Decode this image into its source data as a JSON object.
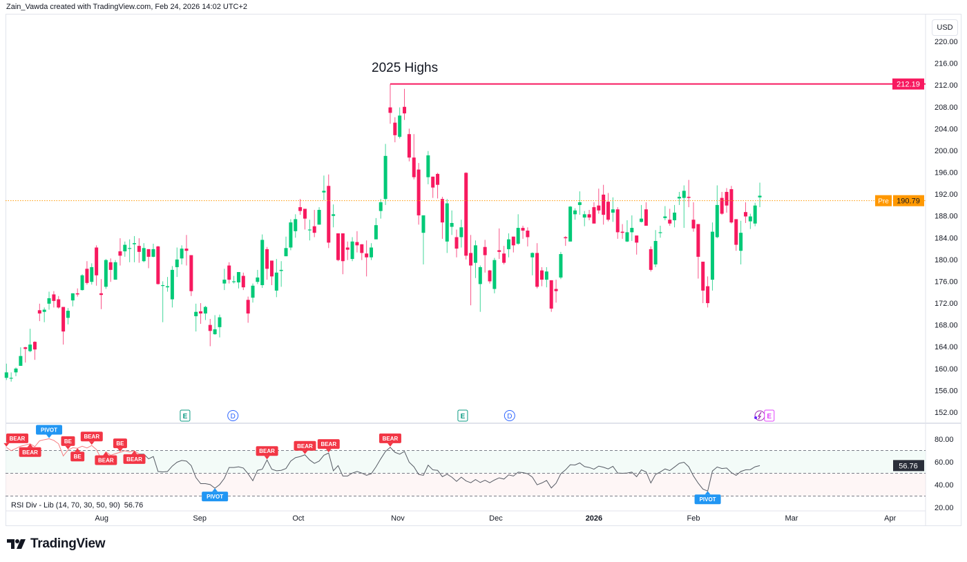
{
  "header": {
    "text": "Zain_Vawda created with TradingView.com, Feb 24, 2026 14:02 UTC+2"
  },
  "currency_button": "USD",
  "footer": {
    "logo_text": "TradingView"
  },
  "colors": {
    "up": "#089981",
    "up_bright": "#00c977",
    "down": "#f7195f",
    "highs_line": "#f7195f",
    "pre_line": "#ff9800",
    "rsi_line": "#555a63",
    "label_bear": "#f23645",
    "label_pivot": "#2196f3"
  },
  "chart_data": {
    "type": "candlestick",
    "annotation": "2025 Highs",
    "highs_level": {
      "value": 212.19,
      "label": "212.19",
      "from_index": 81
    },
    "pre_market": {
      "tag": "Pre",
      "value": 190.79,
      "label": "190.79"
    },
    "price_axis": {
      "ticks": [
        "220.00",
        "216.00",
        "212.00",
        "208.00",
        "204.00",
        "200.00",
        "196.00",
        "192.00",
        "188.00",
        "184.00",
        "180.00",
        "176.00",
        "172.00",
        "168.00",
        "164.00",
        "160.00",
        "156.00",
        "152.00"
      ],
      "min": 152,
      "max": 220
    },
    "time_axis": [
      {
        "label": "Aug",
        "index": 20.1
      },
      {
        "label": "Sep",
        "index": 40.8
      },
      {
        "label": "Oct",
        "index": 61.6
      },
      {
        "label": "Nov",
        "index": 82.6
      },
      {
        "label": "Dec",
        "index": 103.3
      },
      {
        "label": "2026",
        "index": 124,
        "bold": true
      },
      {
        "label": "Feb",
        "index": 145
      },
      {
        "label": "Mar",
        "index": 165.7
      },
      {
        "label": "Apr",
        "index": 186.5
      }
    ],
    "events": [
      {
        "type": "E",
        "index": 37.7
      },
      {
        "type": "D",
        "index": 47.8
      },
      {
        "type": "E",
        "index": 96.3
      },
      {
        "type": "D",
        "index": 106.2
      },
      {
        "type": "split",
        "index": 159
      },
      {
        "type": "E",
        "index": 161
      }
    ],
    "ohlc": [
      [
        158.3,
        160.9,
        157.9,
        159.3
      ],
      [
        158.2,
        159.3,
        157.6,
        158.3
      ],
      [
        159.3,
        160.2,
        158.6,
        160.0
      ],
      [
        160.5,
        163.9,
        160.5,
        162.3
      ],
      [
        163.9,
        164.0,
        161.1,
        163.6
      ],
      [
        163.2,
        167.3,
        163.0,
        164.4
      ],
      [
        164.9,
        165.0,
        161.6,
        163.5
      ],
      [
        170.7,
        171.9,
        168.7,
        170.1
      ],
      [
        170.4,
        171.2,
        168.5,
        170.8
      ],
      [
        171.9,
        174.1,
        170.8,
        172.9
      ],
      [
        173.6,
        174.2,
        171.2,
        172.4
      ],
      [
        172.7,
        173.3,
        171.0,
        171.2
      ],
      [
        171.3,
        171.3,
        164.4,
        166.8
      ],
      [
        169.3,
        171.1,
        168.1,
        170.6
      ],
      [
        172.5,
        173.8,
        171.4,
        173.8
      ],
      [
        173.8,
        174.7,
        173.2,
        173.6
      ],
      [
        174.4,
        177.3,
        174.3,
        177.1
      ],
      [
        178.3,
        179.7,
        175.4,
        175.7
      ],
      [
        175.9,
        179.3,
        175.4,
        178.6
      ],
      [
        182.2,
        182.6,
        175.2,
        177.1
      ],
      [
        173.8,
        176.4,
        170.9,
        173.5
      ],
      [
        175.0,
        180.1,
        174.6,
        179.9
      ],
      [
        179.5,
        180.2,
        175.9,
        178.1
      ],
      [
        176.3,
        179.9,
        176.3,
        179.5
      ],
      [
        181.5,
        183.9,
        178.9,
        180.7
      ],
      [
        181.5,
        183.3,
        180.5,
        182.7
      ],
      [
        182.0,
        183.7,
        179.5,
        182.1
      ],
      [
        182.8,
        184.3,
        179.5,
        183.0
      ],
      [
        182.5,
        183.9,
        179.4,
        181.4
      ],
      [
        179.7,
        183.0,
        179.5,
        182.1
      ],
      [
        181.9,
        181.9,
        178.4,
        180.5
      ],
      [
        180.5,
        182.9,
        180.4,
        181.9
      ],
      [
        182.4,
        182.5,
        175.4,
        175.5
      ],
      [
        175.2,
        176.0,
        168.5,
        175.3
      ],
      [
        174.9,
        176.8,
        174.1,
        175.1
      ],
      [
        172.7,
        178.8,
        171.2,
        178.1
      ],
      [
        178.6,
        182.2,
        176.8,
        180.0
      ],
      [
        180.2,
        182.6,
        179.1,
        182.0
      ],
      [
        182.0,
        184.5,
        178.9,
        181.6
      ],
      [
        180.8,
        180.8,
        173.3,
        174.2
      ],
      [
        169.6,
        171.9,
        166.8,
        170.4
      ],
      [
        170.5,
        172.0,
        168.2,
        170.1
      ],
      [
        170.1,
        171.5,
        168.9,
        171.3
      ],
      [
        168.0,
        169.1,
        164.1,
        166.9
      ],
      [
        166.3,
        169.8,
        166.2,
        167.2
      ],
      [
        167.6,
        169.9,
        165.7,
        169.4
      ],
      [
        175.6,
        178.3,
        174.4,
        176.3
      ],
      [
        178.9,
        179.5,
        175.6,
        176.3
      ],
      [
        175.9,
        177.0,
        175.6,
        176.0
      ],
      [
        175.8,
        177.7,
        174.7,
        177.7
      ],
      [
        177.0,
        177.6,
        174.4,
        174.9
      ],
      [
        172.6,
        173.2,
        168.4,
        170.1
      ],
      [
        173.0,
        175.6,
        172.1,
        175.2
      ],
      [
        175.9,
        178.1,
        175.5,
        176.7
      ],
      [
        175.3,
        184.6,
        174.8,
        183.6
      ],
      [
        181.9,
        182.3,
        176.3,
        178.3
      ],
      [
        179.8,
        179.8,
        175.3,
        176.9
      ],
      [
        174.3,
        180.1,
        173.1,
        177.6
      ],
      [
        177.9,
        179.7,
        175.0,
        178.1
      ],
      [
        180.6,
        184.2,
        180.6,
        182.1
      ],
      [
        182.2,
        187.4,
        181.7,
        186.8
      ],
      [
        185.2,
        188.3,
        184.0,
        187.4
      ],
      [
        189.6,
        191.1,
        188.2,
        188.9
      ],
      [
        189.3,
        189.3,
        185.5,
        187.5
      ],
      [
        185.4,
        187.3,
        183.5,
        185.5
      ],
      [
        186.1,
        189.1,
        184.1,
        184.9
      ],
      [
        186.4,
        189.6,
        186.4,
        189.1
      ],
      [
        192.3,
        195.4,
        190.9,
        192.6
      ],
      [
        193.5,
        195.6,
        182.1,
        183.1
      ],
      [
        188.0,
        190.1,
        185.9,
        188.3
      ],
      [
        184.8,
        184.8,
        179.7,
        179.9
      ],
      [
        184.8,
        184.8,
        177.3,
        179.7
      ],
      [
        182.2,
        183.3,
        179.9,
        181.8
      ],
      [
        180.1,
        184.1,
        179.7,
        183.3
      ],
      [
        183.2,
        185.2,
        181.3,
        182.6
      ],
      [
        182.8,
        182.8,
        179.9,
        181.2
      ],
      [
        181.1,
        183.5,
        176.9,
        180.4
      ],
      [
        180.4,
        183.0,
        179.9,
        182.2
      ],
      [
        183.7,
        187.6,
        183.7,
        186.3
      ],
      [
        188.9,
        191.1,
        187.5,
        190.5
      ],
      [
        191.1,
        201.2,
        190.0,
        199.0
      ],
      [
        207.9,
        212.19,
        204.9,
        206.9
      ],
      [
        205.1,
        206.1,
        201.5,
        202.8
      ],
      [
        202.5,
        207.9,
        202.2,
        206.4
      ],
      [
        208.0,
        211.3,
        205.6,
        206.8
      ],
      [
        203.0,
        204.0,
        198.0,
        198.7
      ],
      [
        198.7,
        203.0,
        194.7,
        195.1
      ],
      [
        196.5,
        197.7,
        186.4,
        188.1
      ],
      [
        184.9,
        188.1,
        179.1,
        188.1
      ],
      [
        195.1,
        199.9,
        193.8,
        199.1
      ],
      [
        195.2,
        195.2,
        191.3,
        193.2
      ],
      [
        195.7,
        195.9,
        191.2,
        193.7
      ],
      [
        191.1,
        191.5,
        183.8,
        186.8
      ],
      [
        183.3,
        191.1,
        181.2,
        190.3
      ],
      [
        186.0,
        189.0,
        184.5,
        186.7
      ],
      [
        184.1,
        185.5,
        180.4,
        182.0
      ],
      [
        184.1,
        187.3,
        182.2,
        185.9
      ],
      [
        195.9,
        196.0,
        180.0,
        180.7
      ],
      [
        181.2,
        184.5,
        171.6,
        178.9
      ],
      [
        179.4,
        183.5,
        176.6,
        182.6
      ],
      [
        175.5,
        178.9,
        170.4,
        178.6
      ],
      [
        182.3,
        183.6,
        177.6,
        180.8
      ],
      [
        178.0,
        178.1,
        175.6,
        176.0
      ],
      [
        174.6,
        180.3,
        173.8,
        179.9
      ],
      [
        181.7,
        185.7,
        180.1,
        181.4
      ],
      [
        181.1,
        182.5,
        179.1,
        179.4
      ],
      [
        181.9,
        184.8,
        180.4,
        183.7
      ],
      [
        184.2,
        184.2,
        181.3,
        182.6
      ],
      [
        182.9,
        188.3,
        182.7,
        185.8
      ],
      [
        185.8,
        186.2,
        183.8,
        185.3
      ],
      [
        185.3,
        185.9,
        182.4,
        184.1
      ],
      [
        180.4,
        181.3,
        177.1,
        181.2
      ],
      [
        181.2,
        183.0,
        174.7,
        175.0
      ],
      [
        178.0,
        178.6,
        175.1,
        176.3
      ],
      [
        176.3,
        178.6,
        174.9,
        177.8
      ],
      [
        176.2,
        176.2,
        170.4,
        171.0
      ],
      [
        174.6,
        176.3,
        172.1,
        174.2
      ],
      [
        176.7,
        181.4,
        176.4,
        181.0
      ],
      [
        184.1,
        184.3,
        182.5,
        183.9
      ],
      [
        183.3,
        189.8,
        183.3,
        189.7
      ],
      [
        188.3,
        189.4,
        187.3,
        189.0
      ],
      [
        190.0,
        192.5,
        188.2,
        190.5
      ],
      [
        187.7,
        188.9,
        186.1,
        188.3
      ],
      [
        188.3,
        189.1,
        187.2,
        187.7
      ],
      [
        189.6,
        190.5,
        186.6,
        186.6
      ],
      [
        189.9,
        193.0,
        188.4,
        189.0
      ],
      [
        191.9,
        193.7,
        186.4,
        188.2
      ],
      [
        190.6,
        192.2,
        187.0,
        187.3
      ],
      [
        188.6,
        191.4,
        186.9,
        189.2
      ],
      [
        189.2,
        189.6,
        183.8,
        185.0
      ],
      [
        185.1,
        186.5,
        183.8,
        184.9
      ],
      [
        183.3,
        187.2,
        183.2,
        185.0
      ],
      [
        185.0,
        188.1,
        183.4,
        185.8
      ],
      [
        184.4,
        184.4,
        180.9,
        183.1
      ],
      [
        186.9,
        190.0,
        186.8,
        187.5
      ],
      [
        189.2,
        190.5,
        186.2,
        186.2
      ],
      [
        181.9,
        182.4,
        177.8,
        178.1
      ],
      [
        179.1,
        185.4,
        178.6,
        183.4
      ],
      [
        184.9,
        186.2,
        184.0,
        185.0
      ],
      [
        187.6,
        189.8,
        187.2,
        187.9
      ],
      [
        187.3,
        189.3,
        186.2,
        186.6
      ],
      [
        187.2,
        190.0,
        185.9,
        188.6
      ],
      [
        191.2,
        192.4,
        190.0,
        191.5
      ],
      [
        191.3,
        193.6,
        185.8,
        192.6
      ],
      [
        191.5,
        194.6,
        189.6,
        191.3
      ],
      [
        187.3,
        190.5,
        185.1,
        185.7
      ],
      [
        186.5,
        186.5,
        176.5,
        180.5
      ],
      [
        179.6,
        179.6,
        172.0,
        174.3
      ],
      [
        175.1,
        176.9,
        171.2,
        172.0
      ],
      [
        176.3,
        186.8,
        174.3,
        185.1
      ],
      [
        184.1,
        193.6,
        183.9,
        190.0
      ],
      [
        191.3,
        192.4,
        188.2,
        188.4
      ],
      [
        192.4,
        193.1,
        188.6,
        189.9
      ],
      [
        192.9,
        193.5,
        186.6,
        186.8
      ],
      [
        187.4,
        187.4,
        181.6,
        182.7
      ],
      [
        181.6,
        187.1,
        179.1,
        184.9
      ],
      [
        188.7,
        190.5,
        186.7,
        187.9
      ],
      [
        187.0,
        188.4,
        185.6,
        187.9
      ],
      [
        186.6,
        190.4,
        186.1,
        189.9
      ],
      [
        191.4,
        194.1,
        189.6,
        191.7
      ]
    ],
    "rsi": {
      "title": "RSI Div - Lib (14, 70, 30, 50, 90)",
      "value_label": "56.76",
      "levels": [
        70,
        50,
        30
      ],
      "axis_ticks": [
        "80.00",
        "60.00",
        "40.00",
        "20.00"
      ],
      "min": 20,
      "max": 80,
      "values": [
        72.8,
        69.8,
        71.8,
        73.8,
        74.8,
        75.9,
        73.4,
        78.5,
        79.5,
        80.3,
        78.9,
        75.9,
        65.2,
        70.4,
        72.4,
        72.0,
        73.8,
        72.2,
        74.4,
        70.8,
        62.7,
        68.8,
        65.8,
        67.2,
        68.4,
        69.8,
        68.8,
        69.8,
        66.8,
        66.8,
        62.7,
        64.7,
        51.6,
        51.2,
        51.6,
        56.3,
        59.7,
        61.3,
        60.7,
        56.7,
        46.2,
        40.9,
        40.9,
        40.1,
        36.9,
        40.1,
        45.6,
        55.1,
        55.1,
        55.7,
        54.6,
        49.6,
        43.5,
        52.6,
        53.6,
        61.7,
        53.6,
        52.2,
        52.6,
        54.2,
        60.7,
        63.7,
        64.7,
        66.2,
        61.7,
        58.7,
        60.7,
        65.8,
        67.8,
        52.2,
        56.7,
        47.6,
        47.6,
        50.2,
        51.6,
        50.2,
        48.2,
        49.6,
        55.7,
        62.7,
        69.2,
        72.8,
        68.4,
        66.8,
        69.2,
        59.7,
        55.7,
        49.0,
        48.2,
        57.1,
        53.0,
        52.6,
        47.0,
        49.2,
        46.6,
        42.9,
        46.6,
        43.3,
        41.7,
        44.5,
        41.9,
        43.9,
        41.7,
        44.1,
        46.0,
        44.9,
        48.6,
        47.6,
        51.0,
        50.6,
        49.6,
        46.6,
        39.9,
        41.5,
        43.7,
        37.1,
        41.3,
        49.6,
        53.0,
        57.5,
        57.3,
        59.1,
        55.9,
        55.1,
        53.6,
        56.3,
        55.3,
        53.8,
        56.1,
        50.2,
        50.0,
        50.2,
        51.0,
        47.0,
        53.0,
        51.2,
        41.5,
        49.0,
        51.2,
        53.8,
        52.4,
        55.5,
        58.7,
        59.7,
        55.7,
        47.6,
        41.3,
        36.1,
        34.4,
        52.0,
        55.5,
        54.2,
        54.6,
        50.6,
        48.2,
        51.6,
        53.0,
        53.2,
        55.7,
        56.76
      ],
      "labels": [
        {
          "text": "BEAR",
          "index": 0,
          "pos": "above"
        },
        {
          "text": "BEAR",
          "index": 5,
          "pos": "above"
        },
        {
          "text": "PIVOT",
          "index": 9,
          "pos": "above"
        },
        {
          "text": "BE",
          "index": 13,
          "pos": "above"
        },
        {
          "text": "BE",
          "index": 15,
          "pos": "above"
        },
        {
          "text": "BEAR",
          "index": 18,
          "pos": "above"
        },
        {
          "text": "BEAR",
          "index": 21,
          "pos": "above"
        },
        {
          "text": "BE",
          "index": 24,
          "pos": "above"
        },
        {
          "text": "BEAR",
          "index": 27,
          "pos": "above"
        },
        {
          "text": "PIVOT",
          "index": 44,
          "pos": "below"
        },
        {
          "text": "BEAR",
          "index": 55,
          "pos": "above"
        },
        {
          "text": "BEAR",
          "index": 63,
          "pos": "above"
        },
        {
          "text": "BEAR",
          "index": 68,
          "pos": "above"
        },
        {
          "text": "BEAR",
          "index": 81,
          "pos": "above"
        },
        {
          "text": "PIVOT",
          "index": 148,
          "pos": "below"
        }
      ]
    }
  }
}
